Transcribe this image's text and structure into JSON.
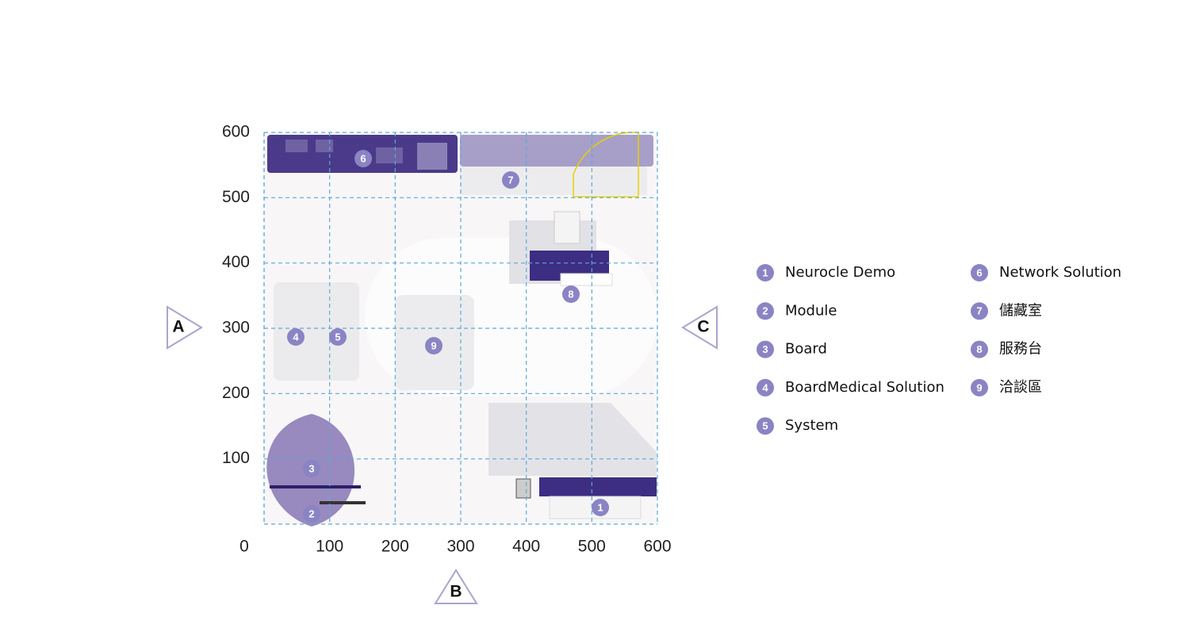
{
  "plan": {
    "xticks": [
      0,
      100,
      200,
      300,
      400,
      500,
      600
    ],
    "yticks": [
      100,
      200,
      300,
      400,
      500,
      600
    ],
    "xlim": [
      0,
      600
    ],
    "ylim": [
      0,
      600
    ]
  },
  "views": [
    "A",
    "B",
    "C"
  ],
  "legend": [
    {
      "number": "1",
      "label": "Neurocle Demo"
    },
    {
      "number": "2",
      "label": "Module"
    },
    {
      "number": "3",
      "label": "Board"
    },
    {
      "number": "4",
      "label": "BoardMedical Solution"
    },
    {
      "number": "5",
      "label": "System"
    },
    {
      "number": "6",
      "label": "Network Solution"
    },
    {
      "number": "7",
      "label": "儲藏室"
    },
    {
      "number": "8",
      "label": "服務台"
    },
    {
      "number": "9",
      "label": "洽談區"
    }
  ]
}
